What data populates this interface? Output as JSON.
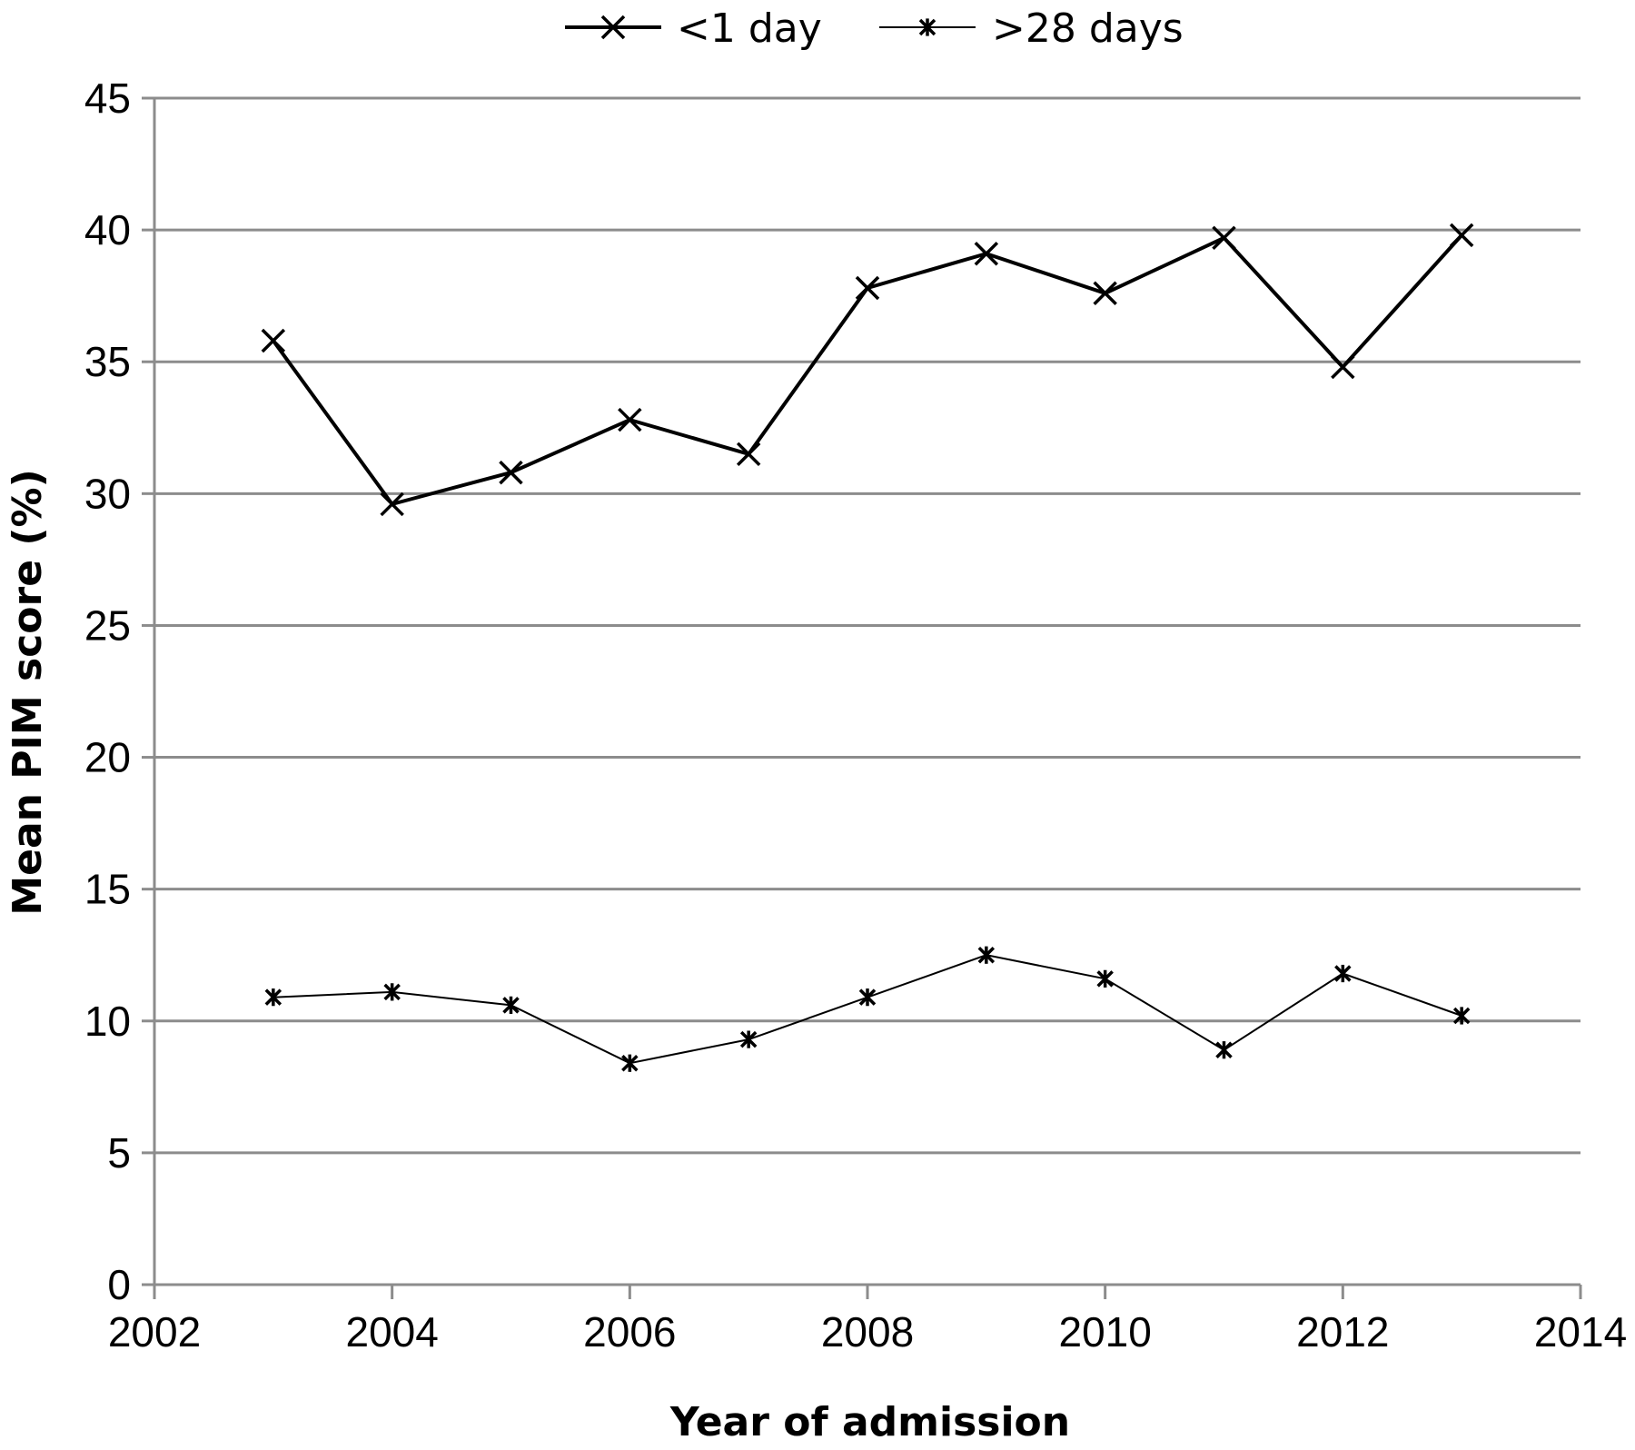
{
  "chart_data": {
    "type": "line",
    "title": "",
    "xlabel": "Year of admission",
    "ylabel": "Mean PIM score (%)",
    "xlim": [
      2002,
      2014
    ],
    "ylim": [
      0,
      45
    ],
    "xticks": [
      2002,
      2004,
      2006,
      2008,
      2010,
      2012,
      2014
    ],
    "yticks": [
      0,
      5,
      10,
      15,
      20,
      25,
      30,
      35,
      40,
      45
    ],
    "grid": "horizontal",
    "legend_position": "top",
    "series": [
      {
        "name": "<1 day",
        "marker": "x",
        "line_style": "thick",
        "x": [
          2003,
          2004,
          2005,
          2006,
          2007,
          2008,
          2009,
          2010,
          2011,
          2012,
          2013
        ],
        "values": [
          35.8,
          29.6,
          30.8,
          32.8,
          31.5,
          37.8,
          39.1,
          37.6,
          39.7,
          34.8,
          39.8
        ]
      },
      {
        "name": ">28 days",
        "marker": "asterisk",
        "line_style": "thin",
        "x": [
          2003,
          2004,
          2005,
          2006,
          2007,
          2008,
          2009,
          2010,
          2011,
          2012,
          2013
        ],
        "values": [
          10.9,
          11.1,
          10.6,
          8.4,
          9.3,
          10.9,
          12.5,
          11.6,
          8.9,
          11.8,
          10.2
        ]
      }
    ]
  }
}
